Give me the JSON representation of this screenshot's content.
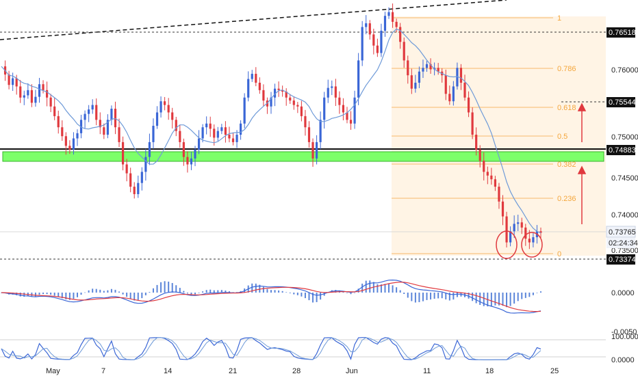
{
  "chart_data": [
    {
      "type": "candlestick",
      "title": "",
      "x_axis": {
        "type": "date",
        "tick_labels": [
          "May",
          "7",
          "14",
          "21",
          "28",
          "Jun",
          "11",
          "18",
          "25"
        ]
      },
      "y_axis": {
        "position": "right",
        "ylim": [
          0.7337,
          0.7684
        ],
        "tick_labels": [
          "0.76000",
          "0.75000",
          "0.74500",
          "0.74000",
          "0.73500"
        ]
      },
      "price_labels": {
        "level_1": "0.76518",
        "level_2": "0.75544",
        "support": "0.74883",
        "current": "0.73765",
        "countdown": "02:24:34",
        "low": "0.73374"
      },
      "fibonacci": [
        {
          "label": "1",
          "price": 0.7679
        },
        {
          "label": "0.786",
          "price": 0.76
        },
        {
          "label": "0.618",
          "price": 0.75544
        },
        {
          "label": "0.5",
          "price": 0.751
        },
        {
          "label": "0.382",
          "price": 0.7478
        },
        {
          "label": "0.236",
          "price": 0.7418
        },
        {
          "label": "0",
          "price": 0.735
        }
      ],
      "colors": {
        "up": "#3a66d6",
        "down": "#e0393e",
        "ma": "#6e9ad8",
        "support_zone": "#7dff6a",
        "fib": "#f7b96a"
      },
      "series_ohlc_approx": [
        0.7602,
        0.7591,
        0.7577,
        0.7586,
        0.7575,
        0.756,
        0.7563,
        0.757,
        0.7553,
        0.7561,
        0.7578,
        0.757,
        0.756,
        0.7548,
        0.7535,
        0.752,
        0.7508,
        0.7495,
        0.749,
        0.7505,
        0.7512,
        0.753,
        0.7538,
        0.7544,
        0.755,
        0.753,
        0.752,
        0.751,
        0.753,
        0.7545,
        0.752,
        0.75,
        0.747,
        0.7458,
        0.744,
        0.743,
        0.7445,
        0.746,
        0.748,
        0.75,
        0.7522,
        0.754,
        0.7555,
        0.755,
        0.754,
        0.753,
        0.7515,
        0.75,
        0.748,
        0.747,
        0.7478,
        0.749,
        0.7505,
        0.752,
        0.7525,
        0.7518,
        0.7506,
        0.7515,
        0.752,
        0.751,
        0.7505,
        0.75,
        0.751,
        0.7525,
        0.756,
        0.7585,
        0.7592,
        0.758,
        0.757,
        0.7556,
        0.7548,
        0.756,
        0.7572,
        0.757,
        0.7568,
        0.756,
        0.7556,
        0.755,
        0.7548,
        0.7535,
        0.752,
        0.75,
        0.7478,
        0.75,
        0.753,
        0.756,
        0.7573,
        0.7575,
        0.756,
        0.755,
        0.754,
        0.753,
        0.7525,
        0.756,
        0.761,
        0.7655,
        0.766,
        0.7645,
        0.763,
        0.762,
        0.765,
        0.767,
        0.7675,
        0.7662,
        0.7655,
        0.7635,
        0.761,
        0.759,
        0.7572,
        0.758,
        0.7595,
        0.76,
        0.7605,
        0.7598,
        0.76,
        0.7595,
        0.759,
        0.7565,
        0.7555,
        0.7575,
        0.76,
        0.758,
        0.756,
        0.754,
        0.751,
        0.749,
        0.7475,
        0.746,
        0.7455,
        0.745,
        0.744,
        0.742,
        0.74,
        0.7365,
        0.738,
        0.739,
        0.7392,
        0.7385,
        0.737,
        0.7365,
        0.7372,
        0.738,
        0.7378
      ]
    },
    {
      "type": "line",
      "title": "",
      "y_axis": {
        "tick_labels": [
          "0.0000",
          "-0.0050"
        ]
      },
      "series": [
        {
          "name": "",
          "color": "#3a66d6"
        },
        {
          "name": "",
          "color": "#e0393e"
        }
      ]
    },
    {
      "type": "line",
      "title": "",
      "y_axis": {
        "tick_labels": [
          "100.0000",
          "0.0000"
        ]
      },
      "series": [
        {
          "name": "",
          "color": "#3a66d6"
        },
        {
          "name": "",
          "color": "#6e9ad8"
        }
      ]
    }
  ]
}
